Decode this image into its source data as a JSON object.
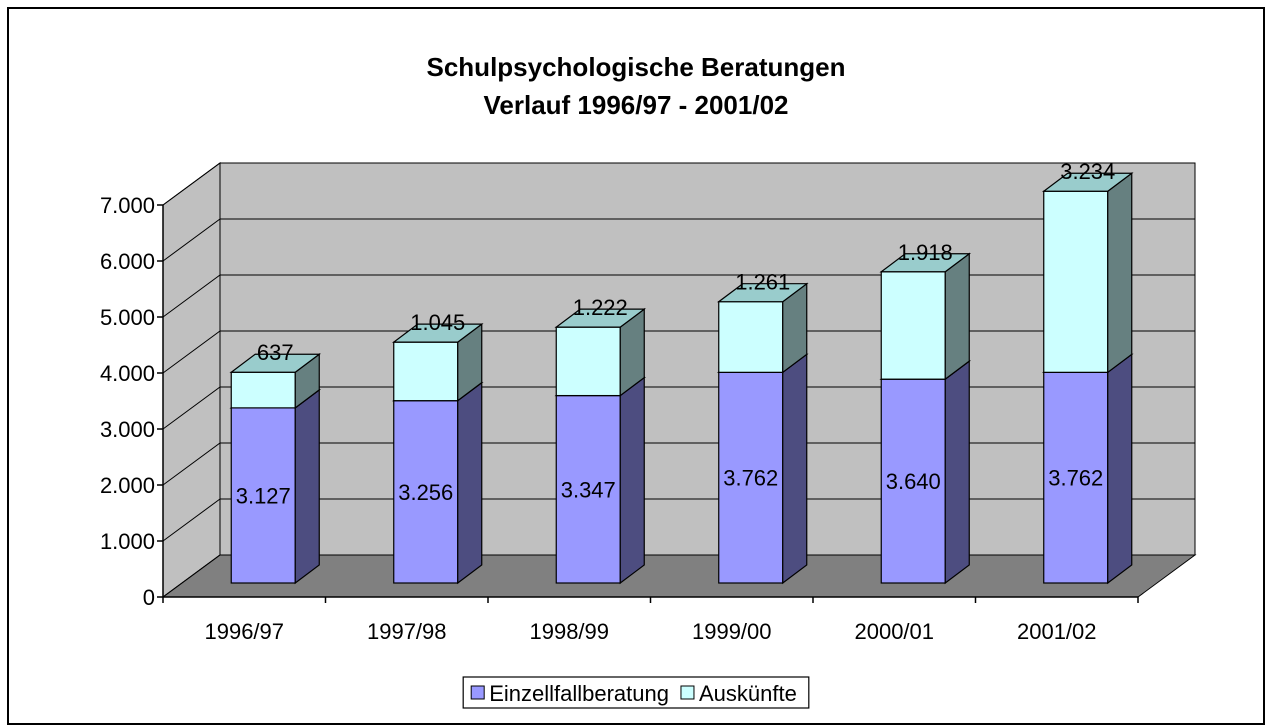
{
  "chart_data": {
    "type": "bar",
    "stacked": true,
    "three_d": true,
    "title": "Schulpsychologische Beratungen",
    "subtitle": "Verlauf 1996/97 - 2001/02",
    "categories": [
      "1996/97",
      "1997/98",
      "1998/99",
      "1999/00",
      "2000/01",
      "2001/02"
    ],
    "series": [
      {
        "name": "Einzellfallberatung",
        "color": "#9999ff",
        "side_color": "#4d4d80",
        "top_color": "#7a7acc",
        "values": [
          3127,
          3256,
          3347,
          3762,
          3640,
          3762
        ],
        "value_labels": [
          "3.127",
          "3.256",
          "3.347",
          "3.762",
          "3.640",
          "3.762"
        ]
      },
      {
        "name": "Auskünfte",
        "color": "#ccffff",
        "side_color": "#668080",
        "top_color": "#99cccc",
        "values": [
          637,
          1045,
          1222,
          1261,
          1918,
          3234
        ],
        "value_labels": [
          "637",
          "1.045",
          "1.222",
          "1.261",
          "1.918",
          "3.234"
        ]
      }
    ],
    "ylim": [
      0,
      7000
    ],
    "yticks": [
      0,
      {
        "value": 1000,
        "label": "1.000"
      },
      {
        "value": 2000,
        "label": "2.000"
      },
      {
        "value": 3000,
        "label": "3.000"
      },
      {
        "value": 4000,
        "label": "4.000"
      },
      {
        "value": 5000,
        "label": "5.000"
      },
      {
        "value": 6000,
        "label": "6.000"
      },
      {
        "value": 7000,
        "label": "7.000"
      }
    ],
    "grid": true,
    "wall_color": "#c0c0c0",
    "floor_color": "#808080",
    "legend": "bottom"
  }
}
